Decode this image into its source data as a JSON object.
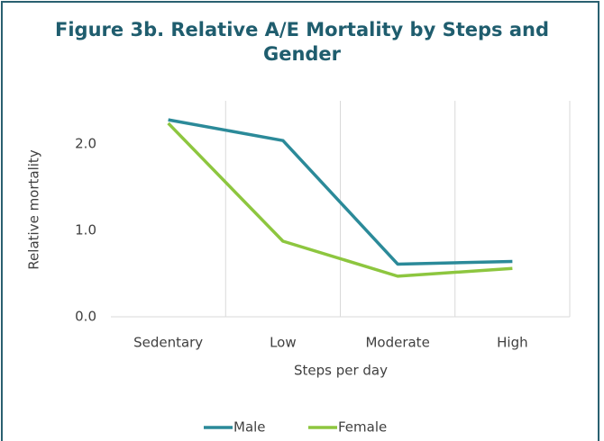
{
  "chart_data": {
    "type": "line",
    "title": "Figure 3b. Relative A/E Mortality by Steps and Gender",
    "y_label": "Relative mortality",
    "x_label": "Steps per day",
    "categories": [
      "Sedentary",
      "Low",
      "Moderate",
      "High"
    ],
    "series": [
      {
        "name": "Male",
        "color": "#2b8a99",
        "values": [
          2.28,
          2.04,
          0.61,
          0.64
        ]
      },
      {
        "name": "Female",
        "color": "#8dc63f",
        "values": [
          2.24,
          0.875,
          0.47,
          0.56
        ]
      }
    ],
    "ylim": [
      0,
      2.5
    ],
    "yticks": [
      {
        "value": 0,
        "label": "0.0"
      },
      {
        "value": 1,
        "label": "1.0"
      },
      {
        "value": 2,
        "label": "2.0"
      }
    ],
    "grid": false,
    "xgrid": true,
    "legend": "bottom"
  }
}
